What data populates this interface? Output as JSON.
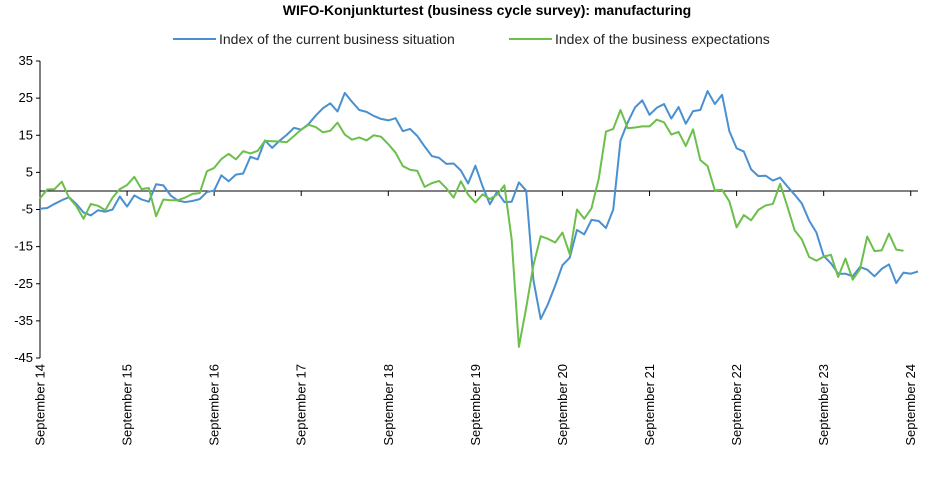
{
  "chart_data": {
    "type": "line",
    "title": "WIFO-Konjunkturtest (business cycle survey): manufacturing",
    "xlabel": "",
    "ylabel": "",
    "ylim": [
      -45,
      35
    ],
    "y_ticks": [
      35,
      25,
      15,
      5,
      -5,
      -15,
      -25,
      -35,
      -45
    ],
    "x_ticks": [
      "September 14",
      "September 15",
      "September 16",
      "September 17",
      "September 18",
      "September 19",
      "September 20",
      "September 21",
      "September 22",
      "September 23",
      "September 24"
    ],
    "x_start": "2014-09",
    "x_end": "2024-09",
    "frequency": "monthly",
    "grid": false,
    "legend": "top-center",
    "series": [
      {
        "name": "Index of the current business situation",
        "color": "#4a90d0",
        "values": [
          -4.8,
          -4.6,
          -3.5,
          -2.5,
          -1.7,
          -3.5,
          -5.8,
          -6.6,
          -5.2,
          -5.6,
          -5.0,
          -1.5,
          -4.2,
          -1.2,
          -2.3,
          -2.9,
          1.8,
          1.5,
          -1.2,
          -2.6,
          -3.0,
          -2.7,
          -2.2,
          -0.3,
          0.1,
          4.2,
          2.6,
          4.4,
          4.7,
          9.2,
          8.5,
          13.6,
          11.6,
          13.5,
          15.1,
          17.0,
          16.5,
          18.0,
          20.3,
          22.3,
          23.6,
          21.4,
          26.4,
          24.0,
          21.8,
          21.3,
          20.2,
          19.4,
          19.0,
          19.6,
          16.1,
          16.7,
          14.8,
          12.0,
          9.4,
          8.9,
          7.3,
          7.4,
          5.5,
          2.0,
          6.8,
          1.2,
          -3.6,
          -0.2,
          -3.0,
          -2.9,
          2.3,
          0.1,
          -24.0,
          -34.5,
          -30.5,
          -25.5,
          -20.0,
          -18.0,
          -10.5,
          -11.7,
          -7.8,
          -8.1,
          -10.0,
          -5.0,
          13.6,
          18.5,
          22.5,
          24.4,
          20.5,
          22.4,
          23.4,
          19.5,
          22.6,
          18.1,
          21.5,
          21.8,
          26.9,
          23.4,
          25.9,
          16.1,
          11.5,
          10.6,
          5.8,
          4.0,
          4.1,
          2.8,
          3.6,
          1.2,
          -1.0,
          -3.4,
          -8.0,
          -11.2,
          -17.5,
          -19.5,
          -22.3,
          -22.3,
          -23.0,
          -20.5,
          -21.2,
          -23.0,
          -21.0,
          -19.8,
          -24.8,
          -22.0,
          -22.3,
          -21.7
        ]
      },
      {
        "name": "Index of the business expectations",
        "color": "#6cbf4b",
        "values": [
          -2.0,
          0.4,
          0.5,
          2.5,
          -1.8,
          -4.1,
          -7.5,
          -3.5,
          -4.0,
          -5.2,
          -1.8,
          0.5,
          1.6,
          3.8,
          0.5,
          0.8,
          -6.8,
          -2.3,
          -2.5,
          -2.5,
          -1.8,
          -0.8,
          -0.6,
          5.3,
          6.2,
          8.6,
          10.0,
          8.5,
          10.7,
          10.1,
          10.8,
          13.5,
          13.4,
          13.3,
          13.1,
          14.8,
          16.5,
          17.8,
          17.2,
          15.8,
          16.2,
          18.4,
          15.2,
          13.8,
          14.4,
          13.6,
          15.0,
          14.6,
          12.6,
          10.3,
          6.7,
          5.7,
          5.4,
          1.1,
          2.1,
          2.7,
          0.7,
          -1.8,
          2.6,
          -1.0,
          -3.1,
          -0.9,
          -2.2,
          -1.0,
          1.5,
          -13.0,
          -42.0,
          -31.5,
          -20.0,
          -12.2,
          -12.9,
          -13.9,
          -11.2,
          -17.0,
          -5.0,
          -7.5,
          -4.7,
          3.3,
          16.0,
          16.7,
          21.8,
          16.9,
          17.1,
          17.4,
          17.4,
          19.2,
          18.5,
          15.2,
          15.9,
          12.1,
          16.6,
          8.3,
          6.7,
          0.2,
          0.3,
          -2.8,
          -9.8,
          -6.5,
          -7.9,
          -5.1,
          -3.9,
          -3.5,
          1.9,
          -4.2,
          -10.6,
          -13.1,
          -17.8,
          -18.8,
          -17.7,
          -17.2,
          -23.2,
          -18.2,
          -23.9,
          -21.1,
          -12.3,
          -16.2,
          -16.0,
          -11.5,
          -15.8,
          -16.1
        ]
      }
    ]
  }
}
